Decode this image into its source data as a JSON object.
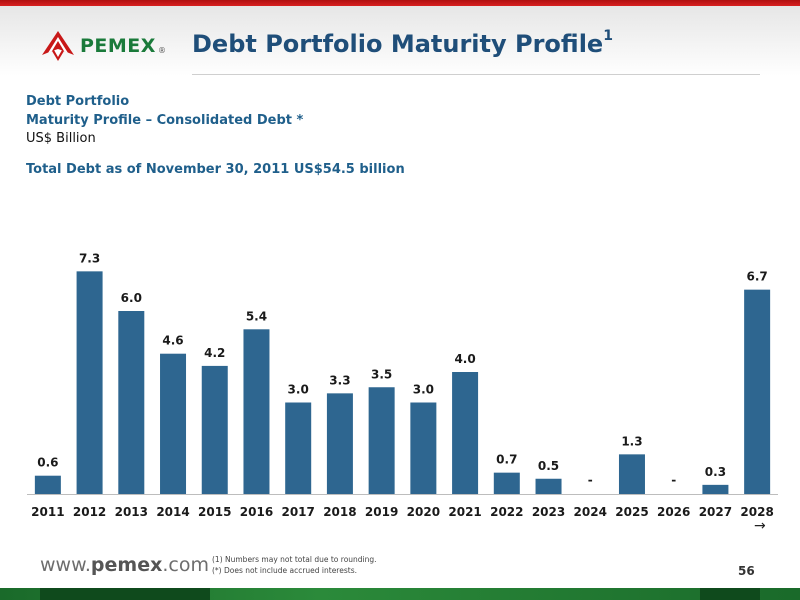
{
  "header": {
    "logo_text": "PEMEX",
    "logo_reg": "®",
    "title": "Debt Portfolio Maturity Profile",
    "title_sup": "1"
  },
  "subheads": {
    "line1": "Debt Portfolio",
    "line2": "Maturity Profile – Consolidated Debt *",
    "line3": "US$ Billion",
    "total": "Total Debt as of November 30, 2011 US$54.5 billion"
  },
  "chart_data": {
    "type": "bar",
    "categories": [
      "2011",
      "2012",
      "2013",
      "2014",
      "2015",
      "2016",
      "2017",
      "2018",
      "2019",
      "2020",
      "2021",
      "2022",
      "2023",
      "2024",
      "2025",
      "2026",
      "2027",
      "2028"
    ],
    "values": [
      0.6,
      7.3,
      6.0,
      4.6,
      4.2,
      5.4,
      3.0,
      3.3,
      3.5,
      3.0,
      4.0,
      0.7,
      0.5,
      0,
      1.3,
      0,
      0.3,
      6.7
    ],
    "data_labels": [
      "0.6",
      "7.3",
      "6.0",
      "4.6",
      "4.2",
      "5.4",
      "3.0",
      "3.3",
      "3.5",
      "3.0",
      "4.0",
      "0.7",
      "0.5",
      "-",
      "1.3",
      "-",
      "0.3",
      "6.7"
    ],
    "title": "",
    "xlabel": "",
    "ylabel": "",
    "ylim": [
      0,
      8
    ],
    "bar_color": "#2e6690",
    "grid": false,
    "legend": "none"
  },
  "last_category_suffix": "→",
  "footer": {
    "url_prefix": "www.",
    "url_domain": "pemex",
    "url_suffix": ".com",
    "footnote1": "(1)    Numbers may not total due to rounding.",
    "footnote2": "(*)    Does not include accrued interests.",
    "page_number": "56"
  },
  "colors": {
    "brand_red": "#c81818",
    "brand_green": "#1a7a3a",
    "title_blue": "#1f4e79",
    "subhead_blue": "#1f5f8b",
    "bar_blue": "#2e6690"
  }
}
